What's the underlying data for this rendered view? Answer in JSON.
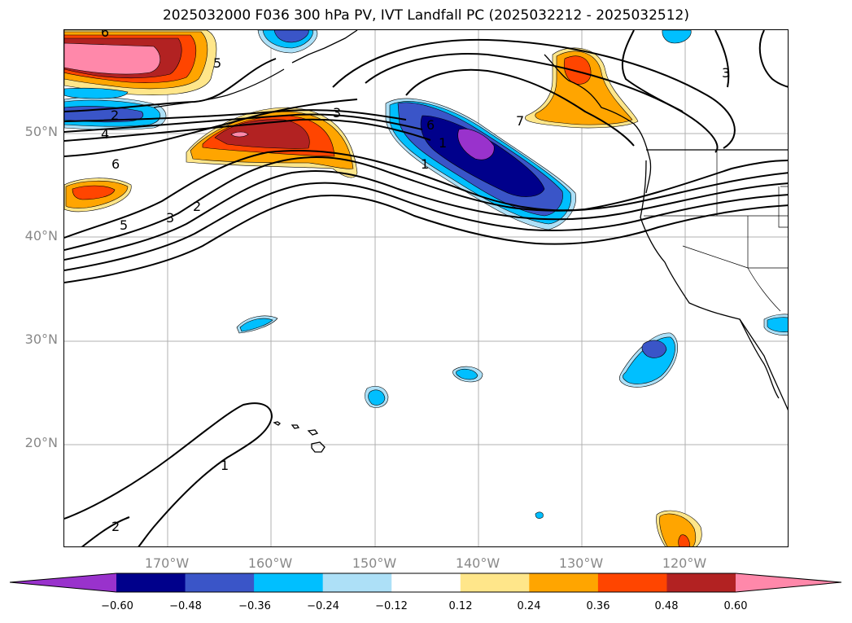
{
  "title": "2025032000 F036 300 hPa PV, IVT Landfall PC (2025032212 - 2025032512)",
  "map": {
    "projection": "PlateCarree",
    "lon_range": [
      -180,
      -110
    ],
    "lat_range": [
      10,
      60
    ],
    "gridlines": true,
    "lat_labels": [
      "50°N",
      "40°N",
      "30°N",
      "20°N"
    ],
    "lon_labels": [
      "170°W",
      "160°W",
      "150°W",
      "140°W",
      "130°W",
      "120°W"
    ],
    "contour_labels": [
      "6",
      "5",
      "2",
      "4",
      "6",
      "5",
      "3",
      "2",
      "3",
      "7",
      "6",
      "1",
      "3",
      "1",
      "2",
      "1"
    ]
  },
  "colorbar": {
    "ticks": [
      "−0.60",
      "−0.48",
      "−0.36",
      "−0.24",
      "−0.12",
      "0.12",
      "0.24",
      "0.36",
      "0.48",
      "0.60"
    ],
    "colors": [
      "#9932CC",
      "#00008B",
      "#3A55C8",
      "#00BFFF",
      "#ADE0F7",
      "#FFFFFF",
      "#FFE68A",
      "#FFA500",
      "#FF4500",
      "#B22222",
      "#FF88AA"
    ],
    "extend": "both"
  }
}
